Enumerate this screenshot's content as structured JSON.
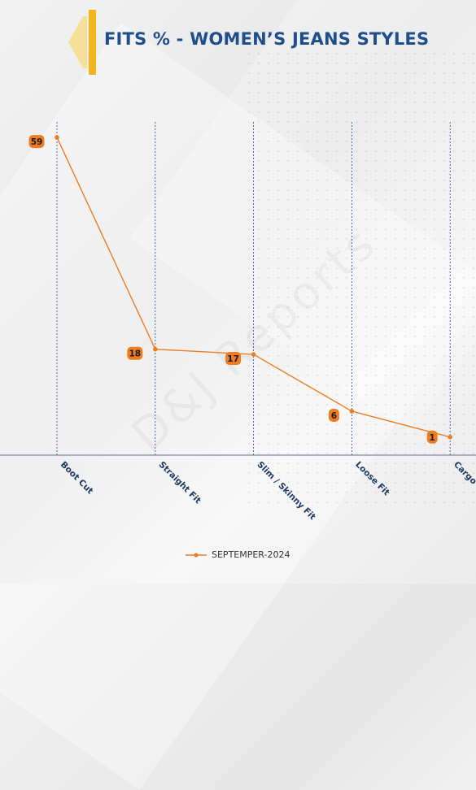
{
  "title": "FITS % - WOMEN’S JEANS STYLES",
  "watermark": "D&J Reports",
  "colors": {
    "line": "#ee7d22",
    "title": "#1f4e8c",
    "accent_gold": "#f2b61b",
    "grid": "#1f4e8c"
  },
  "chart_data": {
    "type": "line",
    "categories": [
      "Boot Cut",
      "Straight Fit",
      "Slim / Skinny Fit",
      "Loose Fit",
      "Cargo"
    ],
    "series": [
      {
        "name": "SEPTEMPER-2024",
        "values": [
          59,
          18,
          17,
          6,
          1
        ]
      }
    ],
    "ylim": [
      -2.5,
      62
    ],
    "grid": "vertical",
    "legend": "bottom",
    "data_labels": true
  }
}
